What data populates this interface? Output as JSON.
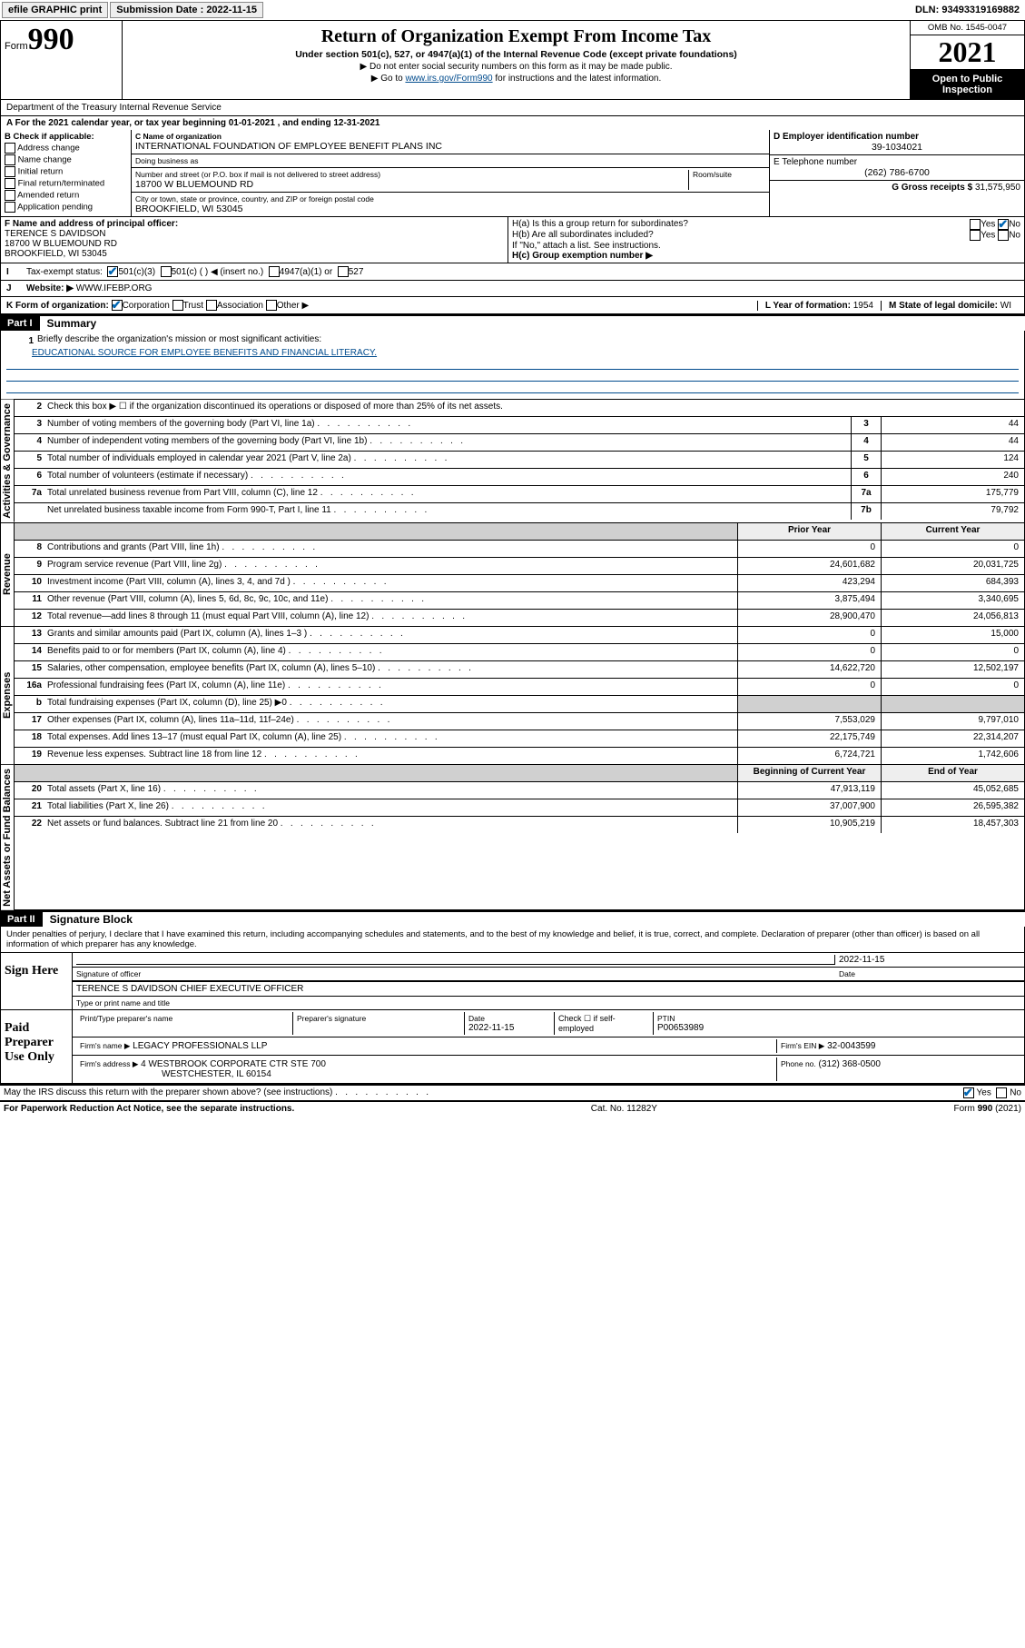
{
  "topbar": {
    "efile": "efile GRAPHIC print",
    "submission_label": "Submission Date : 2022-11-15",
    "dln": "DLN: 93493319169882"
  },
  "header": {
    "form_prefix": "Form",
    "form_num": "990",
    "title": "Return of Organization Exempt From Income Tax",
    "subtitle": "Under section 501(c), 527, or 4947(a)(1) of the Internal Revenue Code (except private foundations)",
    "note1": "▶ Do not enter social security numbers on this form as it may be made public.",
    "note2_pre": "▶ Go to ",
    "note2_link": "www.irs.gov/Form990",
    "note2_post": " for instructions and the latest information.",
    "omb": "OMB No. 1545-0047",
    "year": "2021",
    "open": "Open to Public Inspection",
    "dept": "Department of the Treasury Internal Revenue Service"
  },
  "section_a": {
    "period": "For the 2021 calendar year, or tax year beginning 01-01-2021   , and ending 12-31-2021",
    "b_label": "B Check if applicable:",
    "b_opts": [
      "Address change",
      "Name change",
      "Initial return",
      "Final return/terminated",
      "Amended return",
      "Application pending"
    ],
    "c_label": "C Name of organization",
    "c_name": "INTERNATIONAL FOUNDATION OF EMPLOYEE BENEFIT PLANS INC",
    "dba_label": "Doing business as",
    "dba": "",
    "street_label": "Number and street (or P.O. box if mail is not delivered to street address)",
    "room_label": "Room/suite",
    "street": "18700 W BLUEMOUND RD",
    "city_label": "City or town, state or province, country, and ZIP or foreign postal code",
    "city": "BROOKFIELD, WI  53045",
    "d_label": "D Employer identification number",
    "d_val": "39-1034021",
    "e_label": "E Telephone number",
    "e_val": "(262) 786-6700",
    "g_label": "G Gross receipts $",
    "g_val": "31,575,950",
    "f_label": "F  Name and address of principal officer:",
    "f_name": "TERENCE S DAVIDSON",
    "f_addr1": "18700 W BLUEMOUND RD",
    "f_addr2": "BROOKFIELD, WI  53045",
    "ha_label": "H(a)  Is this a group return for subordinates?",
    "hb_label": "H(b)  Are all subordinates included?",
    "hb_note": "If \"No,\" attach a list. See instructions.",
    "hc_label": "H(c)  Group exemption number ▶",
    "yes": "Yes",
    "no": "No",
    "i_label": "Tax-exempt status:",
    "i_501c3": "501(c)(3)",
    "i_501c": "501(c) (  ) ◀ (insert no.)",
    "i_4947": "4947(a)(1) or",
    "i_527": "527",
    "j_label": "Website: ▶",
    "j_val": "WWW.IFEBP.ORG",
    "k_label": "K Form of organization:",
    "k_opts": [
      "Corporation",
      "Trust",
      "Association",
      "Other ▶"
    ],
    "l_label": "L Year of formation:",
    "l_val": "1954",
    "m_label": "M State of legal domicile:",
    "m_val": "WI"
  },
  "part1": {
    "hdr": "Part I",
    "title": "Summary",
    "l1_label": "Briefly describe the organization's mission or most significant activities:",
    "l1_val": "EDUCATIONAL SOURCE FOR EMPLOYEE BENEFITS AND FINANCIAL LITERACY.",
    "l2": "Check this box ▶ ☐  if the organization discontinued its operations or disposed of more than 25% of its net assets.",
    "rows_gov": [
      {
        "n": "3",
        "d": "Number of voting members of the governing body (Part VI, line 1a)",
        "box": "3",
        "v": "44"
      },
      {
        "n": "4",
        "d": "Number of independent voting members of the governing body (Part VI, line 1b)",
        "box": "4",
        "v": "44"
      },
      {
        "n": "5",
        "d": "Total number of individuals employed in calendar year 2021 (Part V, line 2a)",
        "box": "5",
        "v": "124"
      },
      {
        "n": "6",
        "d": "Total number of volunteers (estimate if necessary)",
        "box": "6",
        "v": "240"
      },
      {
        "n": "7a",
        "d": "Total unrelated business revenue from Part VIII, column (C), line 12",
        "box": "7a",
        "v": "175,779"
      },
      {
        "n": "",
        "d": "Net unrelated business taxable income from Form 990-T, Part I, line 11",
        "box": "7b",
        "v": "79,792"
      }
    ],
    "col_py": "Prior Year",
    "col_cy": "Current Year",
    "rows_rev": [
      {
        "n": "8",
        "d": "Contributions and grants (Part VIII, line 1h)",
        "py": "0",
        "cy": "0"
      },
      {
        "n": "9",
        "d": "Program service revenue (Part VIII, line 2g)",
        "py": "24,601,682",
        "cy": "20,031,725"
      },
      {
        "n": "10",
        "d": "Investment income (Part VIII, column (A), lines 3, 4, and 7d )",
        "py": "423,294",
        "cy": "684,393"
      },
      {
        "n": "11",
        "d": "Other revenue (Part VIII, column (A), lines 5, 6d, 8c, 9c, 10c, and 11e)",
        "py": "3,875,494",
        "cy": "3,340,695"
      },
      {
        "n": "12",
        "d": "Total revenue—add lines 8 through 11 (must equal Part VIII, column (A), line 12)",
        "py": "28,900,470",
        "cy": "24,056,813"
      }
    ],
    "rows_exp": [
      {
        "n": "13",
        "d": "Grants and similar amounts paid (Part IX, column (A), lines 1–3 )",
        "py": "0",
        "cy": "15,000"
      },
      {
        "n": "14",
        "d": "Benefits paid to or for members (Part IX, column (A), line 4)",
        "py": "0",
        "cy": "0"
      },
      {
        "n": "15",
        "d": "Salaries, other compensation, employee benefits (Part IX, column (A), lines 5–10)",
        "py": "14,622,720",
        "cy": "12,502,197"
      },
      {
        "n": "16a",
        "d": "Professional fundraising fees (Part IX, column (A), line 11e)",
        "py": "0",
        "cy": "0"
      },
      {
        "n": "b",
        "d": "Total fundraising expenses (Part IX, column (D), line 25) ▶0",
        "py": "",
        "cy": "",
        "shade": true
      },
      {
        "n": "17",
        "d": "Other expenses (Part IX, column (A), lines 11a–11d, 11f–24e)",
        "py": "7,553,029",
        "cy": "9,797,010"
      },
      {
        "n": "18",
        "d": "Total expenses. Add lines 13–17 (must equal Part IX, column (A), line 25)",
        "py": "22,175,749",
        "cy": "22,314,207"
      },
      {
        "n": "19",
        "d": "Revenue less expenses. Subtract line 18 from line 12",
        "py": "6,724,721",
        "cy": "1,742,606"
      }
    ],
    "col_beg": "Beginning of Current Year",
    "col_end": "End of Year",
    "rows_na": [
      {
        "n": "20",
        "d": "Total assets (Part X, line 16)",
        "py": "47,913,119",
        "cy": "45,052,685"
      },
      {
        "n": "21",
        "d": "Total liabilities (Part X, line 26)",
        "py": "37,007,900",
        "cy": "26,595,382"
      },
      {
        "n": "22",
        "d": "Net assets or fund balances. Subtract line 21 from line 20",
        "py": "10,905,219",
        "cy": "18,457,303"
      }
    ],
    "vtab_gov": "Activities & Governance",
    "vtab_rev": "Revenue",
    "vtab_exp": "Expenses",
    "vtab_na": "Net Assets or Fund Balances"
  },
  "part2": {
    "hdr": "Part II",
    "title": "Signature Block",
    "penalty": "Under penalties of perjury, I declare that I have examined this return, including accompanying schedules and statements, and to the best of my knowledge and belief, it is true, correct, and complete. Declaration of preparer (other than officer) is based on all information of which preparer has any knowledge.",
    "sign_here": "Sign Here",
    "sig_officer": "Signature of officer",
    "sig_date": "Date",
    "sig_date_val": "2022-11-15",
    "sig_name": "TERENCE S DAVIDSON  CHIEF EXECUTIVE OFFICER",
    "sig_name_label": "Type or print name and title",
    "paid": "Paid Preparer Use Only",
    "prep_name_label": "Print/Type preparer's name",
    "prep_sig_label": "Preparer's signature",
    "prep_date_label": "Date",
    "prep_date": "2022-11-15",
    "prep_check": "Check ☐ if self-employed",
    "ptin_label": "PTIN",
    "ptin": "P00653989",
    "firm_name_label": "Firm's name   ▶",
    "firm_name": "LEGACY PROFESSIONALS LLP",
    "firm_ein_label": "Firm's EIN ▶",
    "firm_ein": "32-0043599",
    "firm_addr_label": "Firm's address ▶",
    "firm_addr1": "4 WESTBROOK CORPORATE CTR STE 700",
    "firm_addr2": "WESTCHESTER, IL  60154",
    "phone_label": "Phone no.",
    "phone": "(312) 368-0500",
    "may_irs": "May the IRS discuss this return with the preparer shown above? (see instructions)"
  },
  "footer": {
    "pra": "For Paperwork Reduction Act Notice, see the separate instructions.",
    "cat": "Cat. No. 11282Y",
    "form": "Form 990 (2021)"
  }
}
